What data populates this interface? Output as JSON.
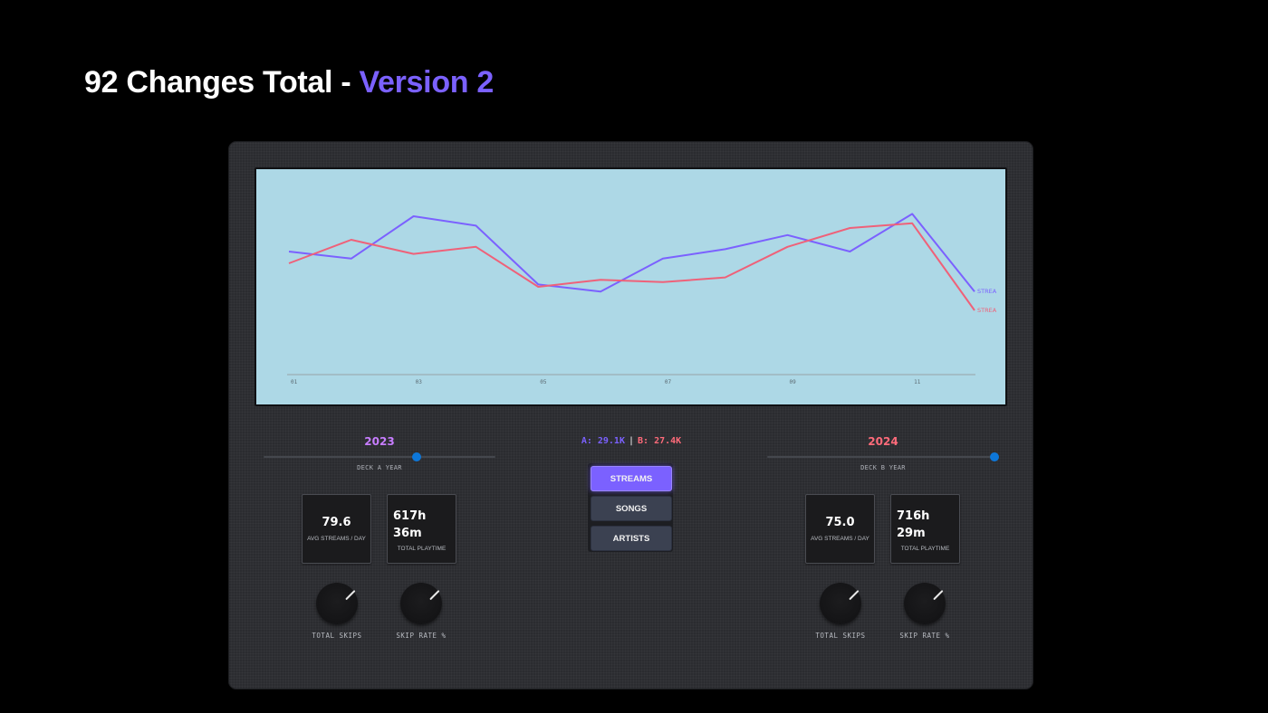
{
  "header": {
    "title_main": "92 Changes Total - ",
    "title_accent": "Version 2"
  },
  "chart_data": {
    "type": "line",
    "x_ticks": [
      "01",
      "03",
      "05",
      "07",
      "09",
      "11"
    ],
    "x": [
      1,
      2,
      3,
      4,
      5,
      6,
      7,
      8,
      9,
      10,
      11,
      12
    ],
    "series": [
      {
        "name": "STREAMS",
        "color": "#7b61ff",
        "values": [
          65,
          62,
          80,
          76,
          51,
          48,
          62,
          66,
          72,
          65,
          81,
          48
        ]
      },
      {
        "name": "STREAMS",
        "color": "#ef6179",
        "values": [
          60,
          70,
          64,
          67,
          50,
          53,
          52,
          54,
          67,
          75,
          77,
          40
        ]
      }
    ],
    "series_labels": [
      "STREA",
      "STREA"
    ],
    "ylim": [
      0,
      100
    ],
    "grid": false
  },
  "deck_a": {
    "year": "2023",
    "caption": "DECK A YEAR",
    "slider_value": 0.66,
    "stat1_value": "79.6",
    "stat1_label": "AVG STREAMS / DAY",
    "stat2_value_l1": "617h",
    "stat2_value_l2": "36m",
    "stat2_label": "TOTAL PLAYTIME",
    "knob1_label": "TOTAL SKIPS",
    "knob2_label": "SKIP RATE %"
  },
  "deck_b": {
    "year": "2024",
    "caption": "DECK B YEAR",
    "slider_value": 0.98,
    "stat1_value": "75.0",
    "stat1_label": "AVG STREAMS / DAY",
    "stat2_value_l1": "716h",
    "stat2_value_l2": "29m",
    "stat2_label": "TOTAL PLAYTIME",
    "knob1_label": "TOTAL SKIPS",
    "knob2_label": "SKIP RATE %"
  },
  "readout": {
    "a": "A: 29.1K",
    "sep": "|",
    "b": "B: 27.4K"
  },
  "modes": {
    "streams": "STREAMS",
    "songs": "SONGS",
    "artists": "ARTISTS",
    "active": "streams"
  }
}
